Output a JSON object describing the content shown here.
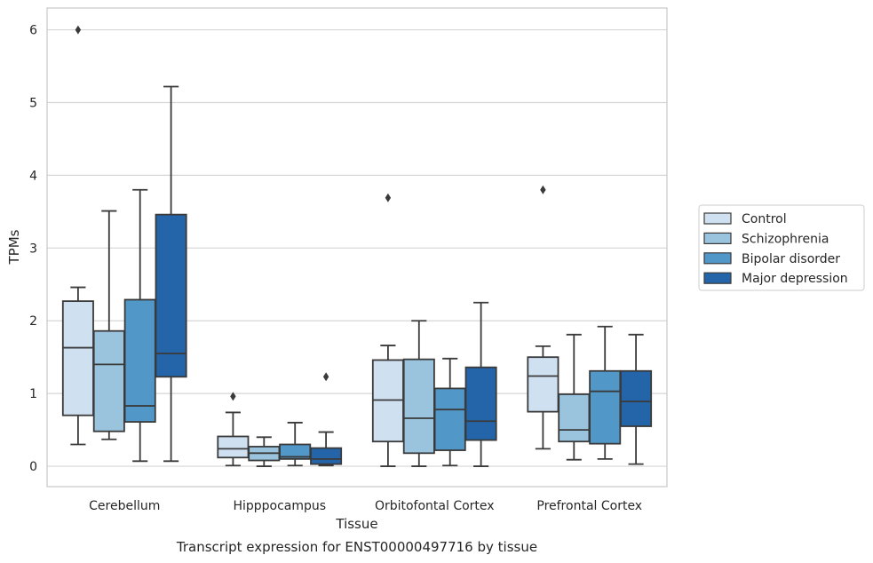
{
  "chart_data": {
    "type": "box",
    "xlabel": "Tissue",
    "ylabel": "TPMs",
    "caption": "Transcript expression for ENST00000497716 by tissue",
    "ylim": [
      -0.28,
      6.3
    ],
    "yticks": [
      0,
      1,
      2,
      3,
      4,
      5,
      6
    ],
    "grid": "horizontal",
    "legend_position": "right",
    "categories": [
      "Cerebellum",
      "Hipppocampus",
      "Orbitofontal Cortex",
      "Prefrontal Cortex"
    ],
    "series": [
      {
        "name": "Control",
        "color": "#cfe0f1",
        "boxes": [
          {
            "whisker_low": 0.3,
            "q1": 0.7,
            "median": 1.63,
            "q3": 2.27,
            "whisker_high": 2.46,
            "outliers": [
              6.0
            ]
          },
          {
            "whisker_low": 0.01,
            "q1": 0.12,
            "median": 0.24,
            "q3": 0.41,
            "whisker_high": 0.74,
            "outliers": [
              0.96
            ]
          },
          {
            "whisker_low": 0.0,
            "q1": 0.34,
            "median": 0.91,
            "q3": 1.46,
            "whisker_high": 1.66,
            "outliers": [
              3.69
            ]
          },
          {
            "whisker_low": 0.24,
            "q1": 0.75,
            "median": 1.24,
            "q3": 1.5,
            "whisker_high": 1.65,
            "outliers": [
              3.8
            ]
          }
        ]
      },
      {
        "name": "Schizophrenia",
        "color": "#9ac4de",
        "boxes": [
          {
            "whisker_low": 0.37,
            "q1": 0.48,
            "median": 1.4,
            "q3": 1.86,
            "whisker_high": 3.51,
            "outliers": []
          },
          {
            "whisker_low": 0.0,
            "q1": 0.08,
            "median": 0.18,
            "q3": 0.27,
            "whisker_high": 0.4,
            "outliers": []
          },
          {
            "whisker_low": 0.0,
            "q1": 0.18,
            "median": 0.66,
            "q3": 1.47,
            "whisker_high": 2.0,
            "outliers": []
          },
          {
            "whisker_low": 0.09,
            "q1": 0.34,
            "median": 0.5,
            "q3": 0.99,
            "whisker_high": 1.81,
            "outliers": []
          }
        ]
      },
      {
        "name": "Bipolar disorder",
        "color": "#5198c8",
        "boxes": [
          {
            "whisker_low": 0.07,
            "q1": 0.61,
            "median": 0.83,
            "q3": 2.29,
            "whisker_high": 3.8,
            "outliers": []
          },
          {
            "whisker_low": 0.01,
            "q1": 0.1,
            "median": 0.13,
            "q3": 0.3,
            "whisker_high": 0.6,
            "outliers": []
          },
          {
            "whisker_low": 0.01,
            "q1": 0.22,
            "median": 0.78,
            "q3": 1.07,
            "whisker_high": 1.48,
            "outliers": []
          },
          {
            "whisker_low": 0.1,
            "q1": 0.31,
            "median": 1.03,
            "q3": 1.31,
            "whisker_high": 1.92,
            "outliers": []
          }
        ]
      },
      {
        "name": "Major depression",
        "color": "#2464a8",
        "boxes": [
          {
            "whisker_low": 0.07,
            "q1": 1.23,
            "median": 1.55,
            "q3": 3.46,
            "whisker_high": 5.22,
            "outliers": []
          },
          {
            "whisker_low": 0.01,
            "q1": 0.03,
            "median": 0.1,
            "q3": 0.25,
            "whisker_high": 0.47,
            "outliers": [
              1.23
            ]
          },
          {
            "whisker_low": 0.0,
            "q1": 0.36,
            "median": 0.62,
            "q3": 1.36,
            "whisker_high": 2.25,
            "outliers": []
          },
          {
            "whisker_low": 0.03,
            "q1": 0.55,
            "median": 0.89,
            "q3": 1.31,
            "whisker_high": 1.81,
            "outliers": []
          }
        ]
      }
    ]
  }
}
